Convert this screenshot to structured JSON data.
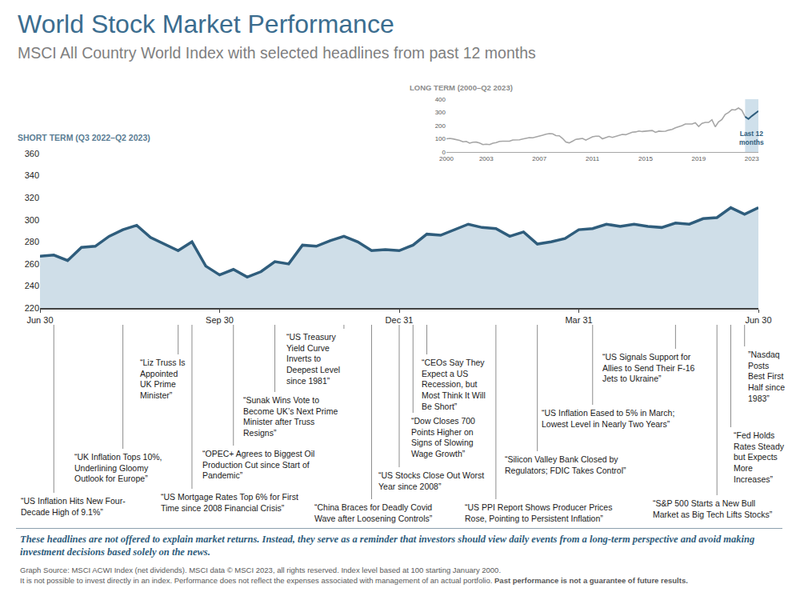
{
  "title": "World Stock Market Performance",
  "subtitle": "MSCI All Country World Index with selected headlines from past 12 months",
  "chart_data": [
    {
      "type": "area",
      "title": "SHORT TERM (Q3 2022–Q2 2023)",
      "categories": [
        "Jun 30",
        null,
        null,
        null,
        null,
        null,
        null,
        null,
        null,
        null,
        null,
        null,
        null,
        "Sep 30",
        null,
        null,
        null,
        null,
        null,
        null,
        null,
        null,
        null,
        null,
        null,
        null,
        "Dec 31",
        null,
        null,
        null,
        null,
        null,
        null,
        null,
        null,
        null,
        null,
        null,
        null,
        "Mar 31",
        null,
        null,
        null,
        null,
        null,
        null,
        null,
        null,
        null,
        null,
        null,
        null,
        "Jun 30"
      ],
      "values": [
        267,
        268,
        263,
        275,
        276,
        285,
        291,
        295,
        284,
        278,
        272,
        280,
        258,
        250,
        255,
        248,
        253,
        262,
        260,
        277,
        276,
        281,
        285,
        280,
        272,
        273,
        272,
        277,
        287,
        286,
        291,
        296,
        293,
        292,
        285,
        289,
        278,
        280,
        283,
        291,
        292,
        296,
        294,
        296,
        294,
        293,
        297,
        296,
        301,
        302,
        311,
        305,
        311
      ],
      "color": "#2f5d7c",
      "ylim": [
        220,
        360
      ],
      "yticks": [
        220,
        240,
        260,
        280,
        300,
        320,
        340,
        360
      ],
      "grid": false,
      "annotations": [
        {
          "x": 1,
          "lines": [
            "“US Inflation Hits New Four-",
            "Decade High of 9.1%”"
          ]
        },
        {
          "x": 6,
          "lines": [
            "“UK Inflation Tops 10%,",
            "Underlining Gloomy",
            "Outlook for Europe”"
          ]
        },
        {
          "x": 10,
          "lines": [
            "“Liz Truss Is",
            "Appointed",
            "UK Prime",
            "Minister”"
          ]
        },
        {
          "x": 11,
          "lines": [
            "“US Mortgage Rates Top 6% for First",
            "Time since 2008 Financial Crisis”"
          ]
        },
        {
          "x": 14,
          "lines": [
            "“OPEC+ Agrees to Biggest Oil",
            "Production Cut since Start of",
            "Pandemic”"
          ]
        },
        {
          "x": 17,
          "lines": [
            "“Sunak Wins Vote to",
            "Become UK’s Next Prime",
            "Minister after Truss",
            "Resigns”"
          ]
        },
        {
          "x": 22,
          "lines": [
            "“US Treasury",
            "Yield Curve",
            "Inverts to",
            "Deepest Level",
            "since 1981”"
          ]
        },
        {
          "x": 24,
          "lines": [
            "“China Braces for Deadly Covid",
            "Wave after Loosening Controls”"
          ]
        },
        {
          "x": 26,
          "lines": [
            "“US Stocks Close Out Worst",
            "Year since 2008”"
          ]
        },
        {
          "x": 27,
          "lines": [
            "“Dow Closes 700",
            "Points Higher on",
            "Signs of Slowing",
            "Wage Growth”"
          ]
        },
        {
          "x": 28,
          "lines": [
            "“CEOs Say They",
            "Expect a US",
            "Recession, but",
            "Most Think It Will",
            "Be Short”"
          ]
        },
        {
          "x": 33,
          "lines": [
            "“US PPI Report Shows Producer Prices",
            "Rose, Pointing to Persistent Inflation”"
          ]
        },
        {
          "x": 36,
          "lines": [
            "“Silicon Valley Bank Closed by",
            "Regulators; FDIC Takes Control”"
          ]
        },
        {
          "x": 40,
          "lines": [
            "“US Inflation Eased to 5% in March;",
            "Lowest Level in Nearly Two Years”"
          ]
        },
        {
          "x": 46,
          "lines": [
            "“US Signals Support for",
            "Allies to Send Their F-16",
            "Jets to Ukraine”"
          ]
        },
        {
          "x": 49,
          "lines": [
            "“S&P 500 Starts a New Bull",
            "Market as Big Tech Lifts Stocks”"
          ]
        },
        {
          "x": 50,
          "lines": [
            "“Fed Holds",
            "Rates Steady",
            "but Expects",
            "More",
            "Increases”"
          ]
        },
        {
          "x": 51,
          "lines": [
            "”Nasdaq",
            "Posts",
            "Best First",
            "Half since",
            "1983”"
          ]
        }
      ]
    },
    {
      "type": "line",
      "title": "LONG TERM (2000–Q2 2023)",
      "x": [
        2000,
        2000.25,
        2000.5,
        2000.75,
        2001,
        2001.25,
        2001.5,
        2001.75,
        2002,
        2002.25,
        2002.5,
        2002.75,
        2003,
        2003.25,
        2003.5,
        2003.75,
        2004,
        2004.25,
        2004.5,
        2004.75,
        2005,
        2005.25,
        2005.5,
        2005.75,
        2006,
        2006.25,
        2006.5,
        2006.75,
        2007,
        2007.25,
        2007.5,
        2007.75,
        2008,
        2008.25,
        2008.5,
        2008.75,
        2009,
        2009.25,
        2009.5,
        2009.75,
        2010,
        2010.25,
        2010.5,
        2010.75,
        2011,
        2011.25,
        2011.5,
        2011.75,
        2012,
        2012.25,
        2012.5,
        2012.75,
        2013,
        2013.25,
        2013.5,
        2013.75,
        2014,
        2014.25,
        2014.5,
        2014.75,
        2015,
        2015.25,
        2015.5,
        2015.75,
        2016,
        2016.25,
        2016.5,
        2016.75,
        2017,
        2017.25,
        2017.5,
        2017.75,
        2018,
        2018.25,
        2018.5,
        2018.75,
        2019,
        2019.25,
        2019.5,
        2019.75,
        2020,
        2020.25,
        2020.5,
        2020.75,
        2021,
        2021.25,
        2021.5,
        2021.75,
        2022,
        2022.25,
        2022.5,
        2022.75,
        2023,
        2023.25,
        2023.5
      ],
      "values": [
        100,
        103,
        99,
        94,
        88,
        77,
        80,
        67,
        74,
        75,
        68,
        56,
        59,
        56,
        67,
        71,
        80,
        82,
        82,
        82,
        91,
        90,
        92,
        98,
        103,
        109,
        108,
        113,
        122,
        127,
        135,
        139,
        138,
        124,
        123,
        103,
        76,
        69,
        82,
        96,
        99,
        103,
        90,
        103,
        115,
        120,
        120,
        100,
        107,
        118,
        111,
        119,
        124,
        133,
        131,
        141,
        150,
        152,
        159,
        155,
        158,
        162,
        163,
        149,
        158,
        156,
        158,
        166,
        171,
        183,
        191,
        200,
        212,
        210,
        212,
        221,
        193,
        217,
        224,
        224,
        244,
        191,
        228,
        246,
        285,
        299,
        321,
        318,
        333,
        316,
        267,
        250,
        272,
        291,
        311
      ],
      "color": "#a6a6a6",
      "xlim": [
        2000,
        2023.5
      ],
      "xticks": [
        2000,
        2003,
        2007,
        2011,
        2015,
        2019,
        2023
      ],
      "ylim": [
        0,
        400
      ],
      "yticks": [
        0,
        100,
        200,
        300,
        400
      ],
      "grid": false,
      "highlight": {
        "label": "Last 12 months",
        "from": 2022.5,
        "to": 2023.5,
        "color": "#2f5d7c"
      }
    }
  ],
  "note": "These headlines are not offered to explain market returns. Instead, they serve as a reminder that investors should view daily events from a long-term perspective and avoid making investment decisions based solely on the news.",
  "source": [
    "Graph Source: MSCI ACWI Index (net dividends). MSCI data © MSCI 2023, all rights reserved. Index level based at 100 starting January 2000.",
    "It is not possible to invest directly in an index. Performance does not reflect the expenses associated with management of an actual portfolio."
  ],
  "source_bold": "Past performance is not a guarantee of future results."
}
